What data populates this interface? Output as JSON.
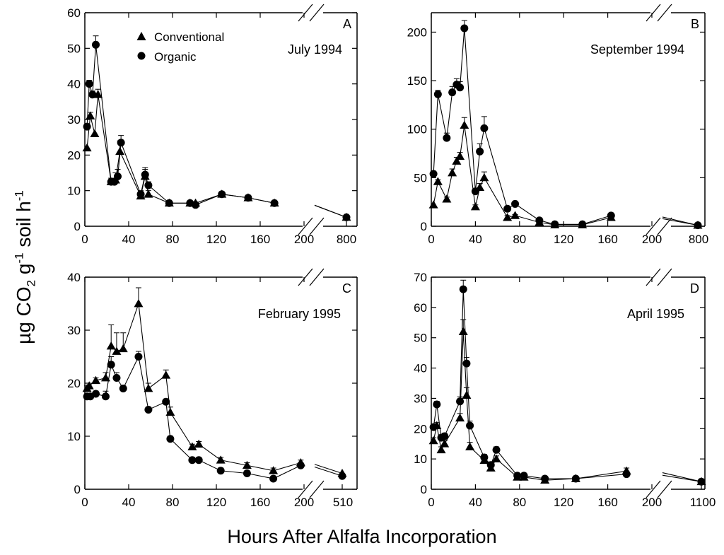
{
  "figure": {
    "ylabel": {
      "prefix": "µg CO",
      "sub": "2",
      "mid": " g",
      "sup1": "-1",
      "mid2": " soil h",
      "sup2": "-1"
    },
    "xlabel": "Hours After Alfalfa Incorporation"
  },
  "legend": {
    "conventional": "Conventional",
    "organic": "Organic",
    "placement": "top-left of panel A"
  },
  "chart_data": [
    {
      "type": "line",
      "panel": "A",
      "title": "July 1994",
      "xlim": [
        0,
        200
      ],
      "xticks": [
        0,
        40,
        80,
        120,
        160,
        200
      ],
      "tail_x_label": "800",
      "ylim": [
        0,
        60
      ],
      "yticks": [
        0,
        10,
        20,
        30,
        40,
        50,
        60
      ],
      "series": [
        {
          "name": "Conventional",
          "marker": "triangle",
          "x": [
            2,
            5,
            9,
            12,
            24,
            28,
            32,
            51,
            55,
            58,
            77,
            96,
            101,
            125,
            149,
            173
          ],
          "y": [
            22,
            31,
            26,
            37,
            12.5,
            13,
            21,
            8.5,
            14,
            9,
            6.5,
            6.5,
            6.5,
            9,
            8,
            6.5
          ],
          "err": [
            0,
            1,
            0,
            1.5,
            1,
            2,
            3,
            1,
            2,
            1,
            0.5,
            0,
            0,
            0.5,
            0.5,
            0.5
          ],
          "tail": {
            "x": 900,
            "y": 2.5
          }
        },
        {
          "name": "Organic",
          "marker": "circle",
          "x": [
            2,
            4,
            7,
            10,
            24,
            27,
            30,
            33,
            51,
            55,
            58,
            77,
            96,
            101,
            125,
            149,
            173
          ],
          "y": [
            28,
            40,
            37,
            51,
            12.5,
            12.5,
            14,
            23.5,
            9,
            14.5,
            11.5,
            6.5,
            6.5,
            6,
            9,
            8,
            6.5
          ],
          "err": [
            0,
            1,
            1,
            2.5,
            1,
            1,
            2,
            2,
            1,
            2,
            1,
            0.5,
            0,
            0.5,
            0.5,
            0.5,
            0.5
          ],
          "tail": {
            "x": 900,
            "y": 2.5
          }
        }
      ]
    },
    {
      "type": "line",
      "panel": "B",
      "title": "September 1994",
      "xlim": [
        0,
        200
      ],
      "xticks": [
        0,
        40,
        80,
        120,
        160,
        200
      ],
      "tail_x_label": "800",
      "ylim": [
        0,
        220
      ],
      "yticks": [
        0,
        50,
        100,
        150,
        200
      ],
      "series": [
        {
          "name": "Conventional",
          "marker": "triangle",
          "x": [
            2,
            6,
            14,
            19,
            23,
            26,
            30,
            40,
            44,
            48,
            69,
            76,
            98,
            112,
            137,
            163
          ],
          "y": [
            22,
            46,
            28,
            55,
            67,
            72,
            104,
            20,
            40,
            50,
            9,
            11,
            4,
            1.5,
            1.5,
            9
          ],
          "err": [
            0,
            2,
            2,
            4,
            4,
            4,
            8,
            2,
            4,
            6,
            2,
            1,
            1,
            0.5,
            0.5,
            1
          ],
          "tail": {
            "x": 760,
            "y": 1
          }
        },
        {
          "name": "Organic",
          "marker": "circle",
          "x": [
            2,
            6,
            14,
            19,
            23,
            26,
            30,
            40,
            44,
            48,
            69,
            76,
            98,
            112,
            137,
            163
          ],
          "y": [
            54,
            136,
            91,
            138,
            146,
            143,
            204,
            36,
            77,
            101,
            18,
            23,
            6,
            2,
            2,
            11
          ],
          "err": [
            0,
            4,
            5,
            6,
            6,
            6,
            8,
            3,
            8,
            12,
            2,
            2,
            1,
            0.5,
            0.5,
            2
          ],
          "tail": {
            "x": 760,
            "y": 1
          }
        }
      ]
    },
    {
      "type": "line",
      "panel": "C",
      "title": "February 1995",
      "xlim": [
        0,
        200
      ],
      "xticks": [
        0,
        40,
        80,
        120,
        160,
        200
      ],
      "tail_x_label": "510",
      "ylim": [
        0,
        40
      ],
      "yticks": [
        0,
        10,
        20,
        30,
        40
      ],
      "series": [
        {
          "name": "Conventional",
          "marker": "triangle",
          "x": [
            2,
            4,
            10,
            19,
            24,
            29,
            35,
            49,
            58,
            74,
            78,
            98,
            104,
            124,
            148,
            172,
            197
          ],
          "y": [
            19,
            19.5,
            20.5,
            21,
            27,
            26,
            26.5,
            35,
            19,
            21.5,
            14.5,
            8,
            8.5,
            5.5,
            4.5,
            3.5,
            5
          ],
          "err": [
            0.5,
            0.5,
            0.5,
            1,
            4,
            3.5,
            3,
            3,
            1,
            1,
            1,
            0.5,
            0.5,
            0.5,
            0.5,
            0.5,
            0.5
          ],
          "tail": {
            "x": 515,
            "y": 3
          }
        },
        {
          "name": "Organic",
          "marker": "circle",
          "x": [
            2,
            5,
            10,
            19,
            24,
            29,
            35,
            49,
            58,
            74,
            78,
            98,
            104,
            124,
            148,
            172,
            197
          ],
          "y": [
            17.5,
            17.5,
            18,
            17.5,
            23.5,
            21,
            19,
            25,
            15,
            16.5,
            9.5,
            5.5,
            5.5,
            3.5,
            3,
            2,
            4.5
          ],
          "err": [
            0.5,
            0.5,
            0.5,
            1,
            1.5,
            1,
            0.5,
            1,
            0.5,
            0.5,
            0.5,
            0.5,
            0.5,
            0.5,
            0.5,
            0.3,
            0.5
          ],
          "tail": {
            "x": 515,
            "y": 2.5
          }
        }
      ]
    },
    {
      "type": "line",
      "panel": "D",
      "title": "April 1995",
      "xlim": [
        0,
        200
      ],
      "xticks": [
        0,
        40,
        80,
        120,
        160,
        200
      ],
      "tail_x_label": "1100",
      "ylim": [
        0,
        70
      ],
      "yticks": [
        0,
        10,
        20,
        30,
        40,
        50,
        60,
        70
      ],
      "series": [
        {
          "name": "Conventional",
          "marker": "triangle",
          "x": [
            2,
            5,
            9,
            12,
            26,
            29,
            32,
            35,
            48,
            54,
            59,
            78,
            84,
            103,
            131,
            177
          ],
          "y": [
            16,
            21,
            13,
            15,
            23.5,
            52,
            31,
            14,
            9.5,
            7,
            10,
            4,
            4,
            3,
            3.5,
            6
          ],
          "err": [
            1,
            1,
            1,
            1,
            1.5,
            4,
            2.5,
            1.5,
            1,
            1,
            1,
            0.5,
            0.5,
            0.5,
            0.5,
            1
          ],
          "tail": {
            "x": 1100,
            "y": 2.5
          }
        },
        {
          "name": "Organic",
          "marker": "circle",
          "x": [
            2,
            5,
            9,
            12,
            26,
            29,
            32,
            35,
            48,
            54,
            59,
            78,
            84,
            103,
            131,
            177
          ],
          "y": [
            20.5,
            28,
            17,
            17.5,
            29,
            66,
            41.5,
            21,
            10.5,
            8,
            13,
            4.5,
            4.5,
            3.5,
            3.5,
            5
          ],
          "err": [
            1,
            1,
            1,
            1,
            1.5,
            3,
            2,
            1.5,
            1,
            1,
            1,
            0.5,
            0.5,
            0.5,
            0.5,
            1
          ],
          "tail": {
            "x": 1100,
            "y": 2.5
          }
        }
      ]
    }
  ]
}
